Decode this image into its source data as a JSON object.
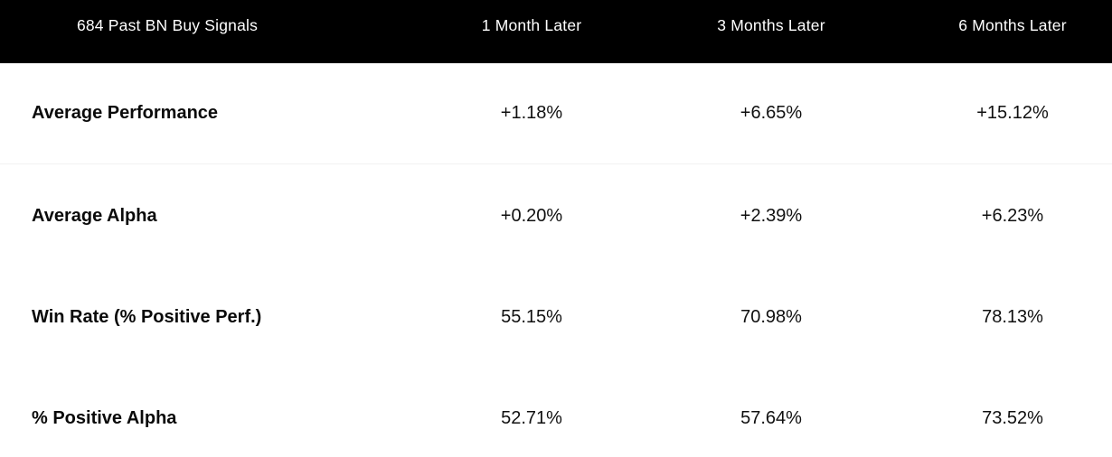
{
  "chart_data": {
    "type": "table",
    "title": "684 Past BN Buy Signals",
    "columns": [
      "684 Past BN Buy Signals",
      "1 Month Later",
      "3 Months Later",
      "6 Months Later"
    ],
    "rows": [
      [
        "Average Performance",
        "+1.18%",
        "+6.65%",
        "+15.12%"
      ],
      [
        "Average Alpha",
        "+0.20%",
        "+2.39%",
        "+6.23%"
      ],
      [
        "Win Rate (% Positive Perf.)",
        "55.15%",
        "70.98%",
        "78.13%"
      ],
      [
        "% Positive Alpha",
        "52.71%",
        "57.64%",
        "73.52%"
      ]
    ],
    "layout": {
      "header_position": "top",
      "label_column_alignment": "left",
      "value_column_alignment": "center"
    }
  },
  "colors": {
    "header_bg": "#000000",
    "header_text": "#ffffff",
    "body_text": "#101010",
    "row_divider": "#f2f2f2",
    "background": "#ffffff"
  }
}
